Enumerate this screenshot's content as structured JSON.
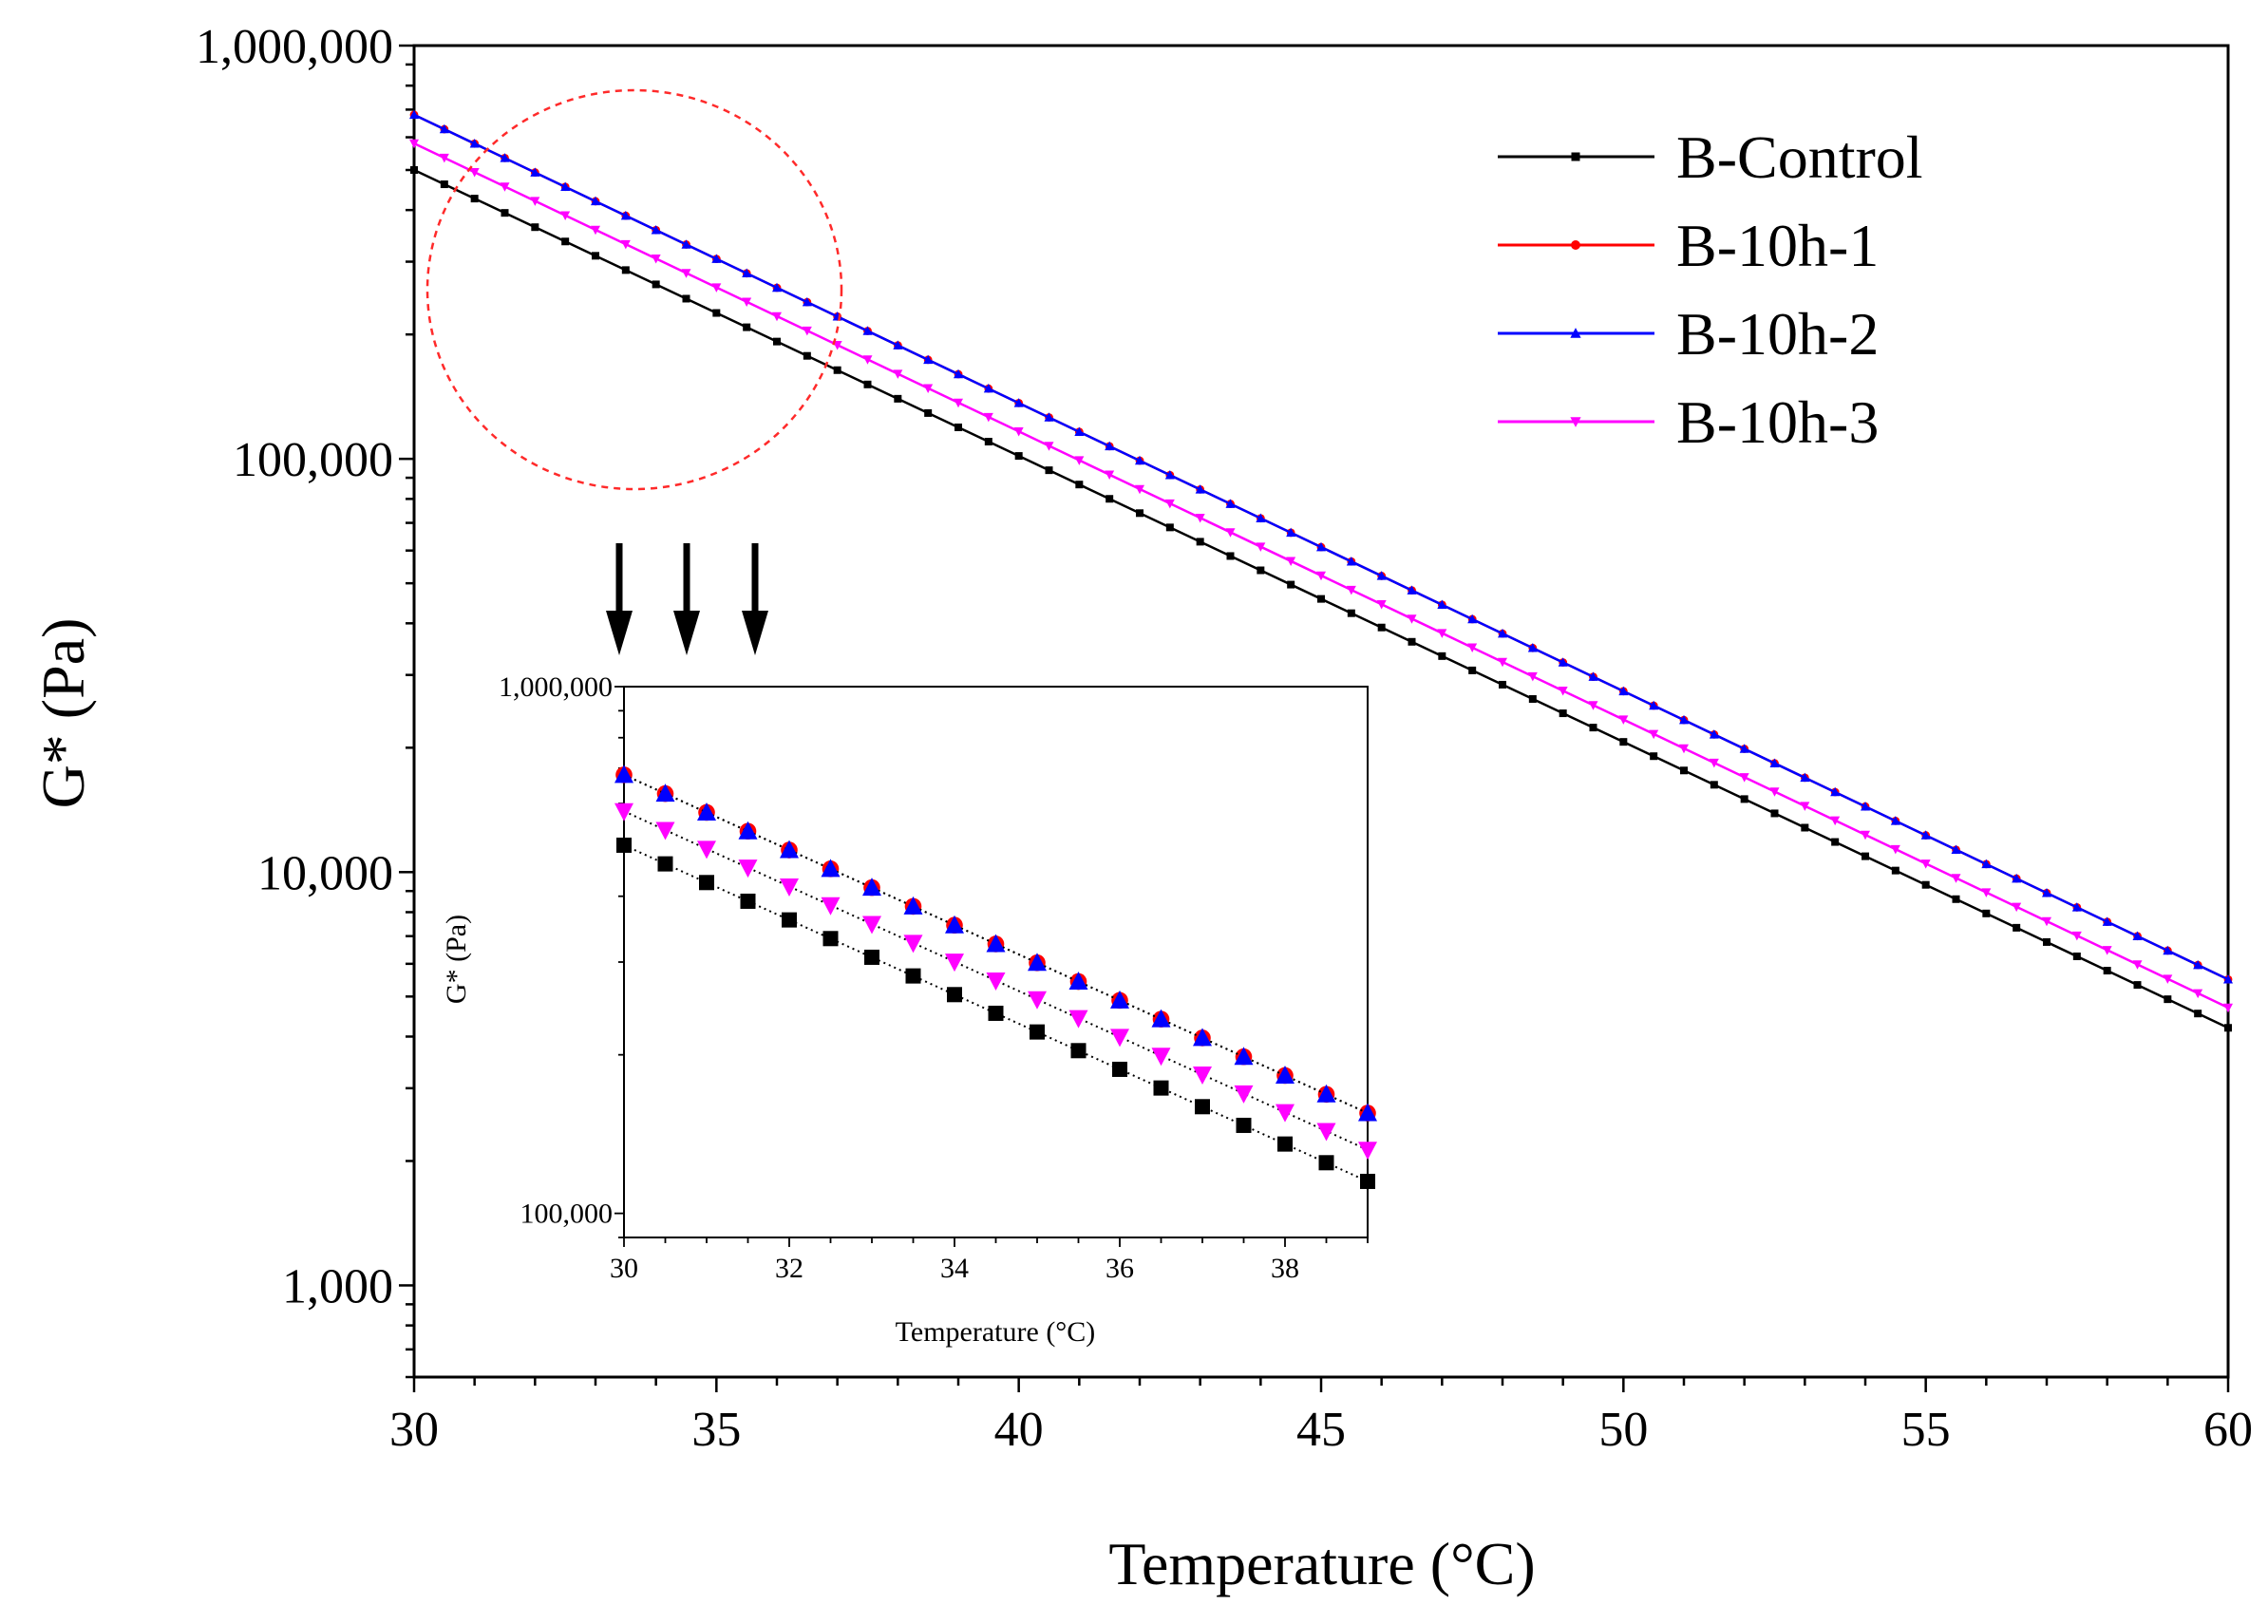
{
  "chart_data": [
    {
      "type": "line",
      "scale": "log-y",
      "xlabel": "Temperature (°C)",
      "ylabel": "G* (Pa)",
      "xlim": [
        30,
        60
      ],
      "ylim": [
        600,
        1000000
      ],
      "xticks": [
        30,
        35,
        40,
        45,
        50,
        55,
        60
      ],
      "xtick_labels": [
        "30",
        "35",
        "40",
        "45",
        "50",
        "55",
        "60"
      ],
      "yticks": [
        1000,
        10000,
        100000,
        1000000
      ],
      "ytick_labels": [
        "1,000",
        "10,000",
        "100,000",
        "1,000,000"
      ],
      "x_step": 0.5,
      "legend_position": "top-right",
      "series": [
        {
          "name": "B-Control",
          "color": "#000000",
          "marker": "square",
          "start": [
            30,
            500000
          ],
          "end": [
            60,
            4200
          ]
        },
        {
          "name": "B-10h-1",
          "color": "#ff0000",
          "marker": "circle",
          "start": [
            30,
            680000
          ],
          "end": [
            60,
            5500
          ]
        },
        {
          "name": "B-10h-2",
          "color": "#0000ff",
          "marker": "triangle-up",
          "start": [
            30,
            680000
          ],
          "end": [
            60,
            5500
          ]
        },
        {
          "name": "B-10h-3",
          "color": "#ff00ff",
          "marker": "triangle-down",
          "start": [
            30,
            580000
          ],
          "end": [
            60,
            4700
          ]
        }
      ]
    },
    {
      "type": "line",
      "scale": "log-y",
      "role": "inset",
      "xlabel": "Temperature (°C)",
      "ylabel": "G* (Pa)",
      "xlim": [
        30,
        39
      ],
      "ylim": [
        90000,
        1000000
      ],
      "xticks": [
        30,
        32,
        34,
        36,
        38
      ],
      "xtick_labels": [
        "30",
        "32",
        "34",
        "36",
        "38"
      ],
      "yticks": [
        100000,
        1000000
      ],
      "ytick_labels": [
        "100,000",
        "1,000,000"
      ],
      "x_step": 0.5,
      "series": [
        {
          "name": "B-Control",
          "color": "#000000",
          "marker": "square",
          "start": [
            30,
            500000
          ],
          "end": [
            39,
            115000
          ]
        },
        {
          "name": "B-10h-1",
          "color": "#ff0000",
          "marker": "circle",
          "start": [
            30,
            680000
          ],
          "end": [
            39,
            155000
          ]
        },
        {
          "name": "B-10h-2",
          "color": "#0000ff",
          "marker": "triangle-up",
          "start": [
            30,
            680000
          ],
          "end": [
            39,
            155000
          ]
        },
        {
          "name": "B-10h-3",
          "color": "#ff00ff",
          "marker": "triangle-down",
          "start": [
            30,
            580000
          ],
          "end": [
            39,
            132000
          ]
        }
      ]
    }
  ]
}
